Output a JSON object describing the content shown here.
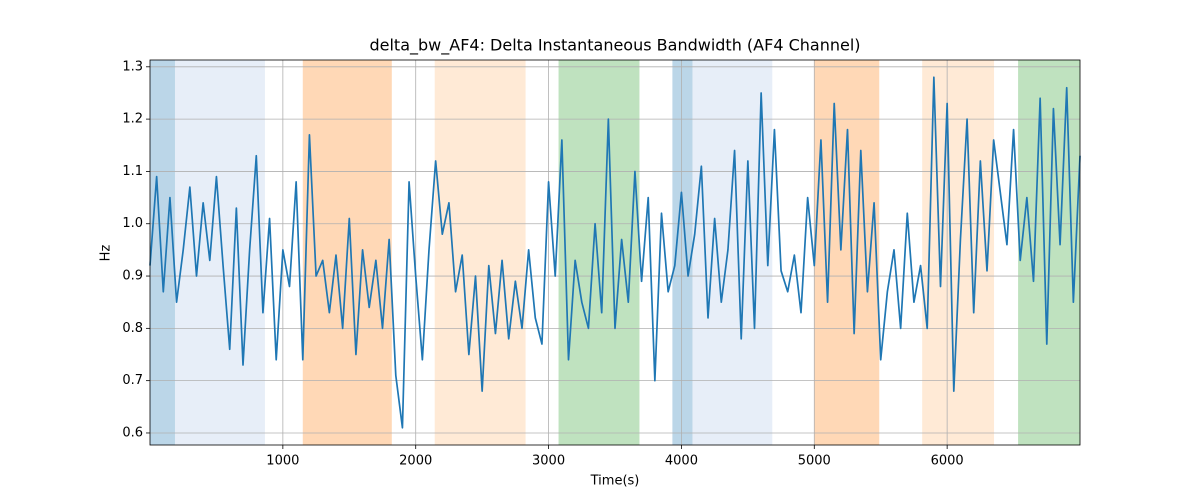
{
  "chart_data": {
    "type": "line",
    "title": "delta_bw_AF4: Delta Instantaneous Bandwidth (AF4 Channel)",
    "xlabel": "Time(s)",
    "ylabel": "Hz",
    "color": "#1f77b4",
    "grid": true,
    "xlim": [
      0,
      7000
    ],
    "ylim": [
      0.577,
      1.313
    ],
    "xticks": [
      1000,
      2000,
      3000,
      4000,
      5000,
      6000
    ],
    "yticks": [
      0.6,
      0.7,
      0.8,
      0.9,
      {
        "value": 1,
        "label": "1.0"
      },
      1.1,
      1.2,
      1.3
    ],
    "spans": [
      {
        "start": 0,
        "end": 188,
        "color": "#1f77b4",
        "opacity": 0.3
      },
      {
        "start": 188,
        "end": 865,
        "color": "#aec7e8",
        "opacity": 0.3
      },
      {
        "start": 1150,
        "end": 1820,
        "color": "#ff7f0e",
        "opacity": 0.3
      },
      {
        "start": 2143,
        "end": 2827,
        "color": "#ffbb78",
        "opacity": 0.3
      },
      {
        "start": 3075,
        "end": 3684,
        "color": "#2ca02c",
        "opacity": 0.3
      },
      {
        "start": 3932,
        "end": 4083,
        "color": "#1f77b4",
        "opacity": 0.3
      },
      {
        "start": 4083,
        "end": 4684,
        "color": "#aec7e8",
        "opacity": 0.3
      },
      {
        "start": 5000,
        "end": 5489,
        "color": "#ff7f0e",
        "opacity": 0.3
      },
      {
        "start": 5812,
        "end": 6353,
        "color": "#ffbb78",
        "opacity": 0.3
      },
      {
        "start": 6534,
        "end": 7000,
        "color": "#2ca02c",
        "opacity": 0.3
      }
    ],
    "x": [
      0,
      50,
      100,
      150,
      200,
      250,
      300,
      350,
      400,
      450,
      500,
      550,
      600,
      650,
      700,
      750,
      800,
      850,
      900,
      950,
      1000,
      1050,
      1100,
      1150,
      1200,
      1250,
      1300,
      1350,
      1400,
      1450,
      1500,
      1550,
      1600,
      1650,
      1700,
      1750,
      1800,
      1850,
      1900,
      1950,
      2000,
      2050,
      2100,
      2150,
      2200,
      2250,
      2300,
      2350,
      2400,
      2450,
      2500,
      2550,
      2600,
      2650,
      2700,
      2750,
      2800,
      2850,
      2900,
      2950,
      3000,
      3050,
      3100,
      3150,
      3200,
      3250,
      3300,
      3350,
      3400,
      3450,
      3500,
      3550,
      3600,
      3650,
      3700,
      3750,
      3800,
      3850,
      3900,
      3950,
      4000,
      4050,
      4100,
      4150,
      4200,
      4250,
      4300,
      4350,
      4400,
      4450,
      4500,
      4550,
      4600,
      4650,
      4700,
      4750,
      4800,
      4850,
      4900,
      4950,
      5000,
      5050,
      5100,
      5150,
      5200,
      5250,
      5300,
      5350,
      5400,
      5450,
      5500,
      5550,
      5600,
      5650,
      5700,
      5750,
      5800,
      5850,
      5900,
      5950,
      6000,
      6050,
      6100,
      6150,
      6200,
      6250,
      6300,
      6350,
      6400,
      6450,
      6500,
      6550,
      6600,
      6650,
      6700,
      6750,
      6800,
      6850,
      6900,
      6950,
      7000
    ],
    "values": [
      0.92,
      1.09,
      0.87,
      1.05,
      0.85,
      0.95,
      1.07,
      0.9,
      1.04,
      0.93,
      1.09,
      0.92,
      0.76,
      1.03,
      0.73,
      0.95,
      1.13,
      0.83,
      1.01,
      0.74,
      0.95,
      0.88,
      1.08,
      0.74,
      1.17,
      0.9,
      0.93,
      0.83,
      0.94,
      0.8,
      1.01,
      0.75,
      0.95,
      0.84,
      0.93,
      0.8,
      0.97,
      0.71,
      0.61,
      1.08,
      0.9,
      0.74,
      0.95,
      1.12,
      0.98,
      1.04,
      0.87,
      0.94,
      0.75,
      0.9,
      0.68,
      0.92,
      0.79,
      0.93,
      0.78,
      0.89,
      0.8,
      0.95,
      0.82,
      0.77,
      1.08,
      0.9,
      1.16,
      0.74,
      0.93,
      0.85,
      0.8,
      1.0,
      0.83,
      1.2,
      0.8,
      0.97,
      0.85,
      1.1,
      0.89,
      1.05,
      0.7,
      1.02,
      0.87,
      0.92,
      1.06,
      0.9,
      0.98,
      1.11,
      0.82,
      1.01,
      0.85,
      0.95,
      1.14,
      0.78,
      1.12,
      0.8,
      1.25,
      0.92,
      1.18,
      0.91,
      0.87,
      0.94,
      0.83,
      1.05,
      0.92,
      1.16,
      0.85,
      1.23,
      0.95,
      1.18,
      0.79,
      1.14,
      0.87,
      1.04,
      0.74,
      0.87,
      0.95,
      0.8,
      1.02,
      0.85,
      0.92,
      0.8,
      1.28,
      0.88,
      1.23,
      0.68,
      0.97,
      1.2,
      0.83,
      1.12,
      0.91,
      1.16,
      1.06,
      0.96,
      1.18,
      0.93,
      1.05,
      0.89,
      1.24,
      0.77,
      1.22,
      0.96,
      1.26,
      0.85,
      1.13
    ]
  }
}
